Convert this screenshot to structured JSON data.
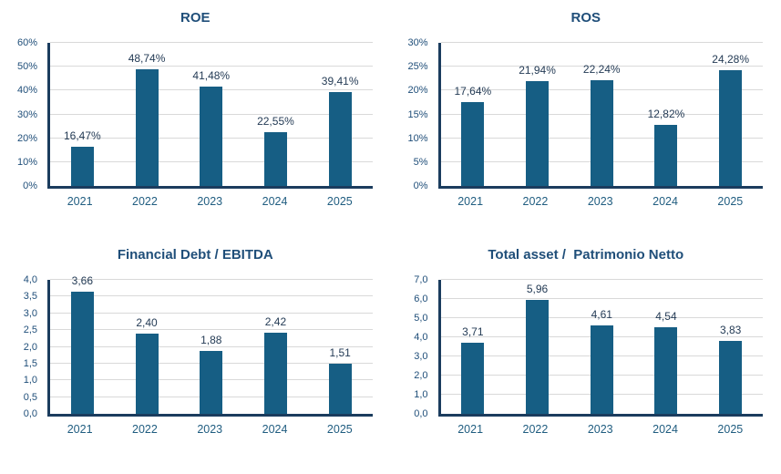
{
  "theme": {
    "bar_color": "#165E84",
    "title_color": "#1F4E79",
    "tick_color": "#1F4E79",
    "year_color": "#205D80",
    "label_color": "#243B55",
    "axis_color": "#1B3C5E",
    "gridline_color": "#D9D9D9",
    "background_color": "#FFFFFF"
  },
  "chart_data": [
    {
      "type": "bar",
      "title": "ROE",
      "categories": [
        "2021",
        "2022",
        "2023",
        "2024",
        "2025"
      ],
      "values": [
        16.47,
        48.74,
        41.48,
        22.55,
        39.41
      ],
      "value_labels": [
        "16,47%",
        "48,74%",
        "41,48%",
        "22,55%",
        "39,41%"
      ],
      "xlabel": "",
      "ylabel": "",
      "ylim": [
        0,
        60
      ],
      "ytick_step": 10,
      "ytick_labels": [
        "0%",
        "10%",
        "20%",
        "30%",
        "40%",
        "50%",
        "60%"
      ],
      "grid": true,
      "legend": false
    },
    {
      "type": "bar",
      "title": "ROS",
      "categories": [
        "2021",
        "2022",
        "2023",
        "2024",
        "2025"
      ],
      "values": [
        17.64,
        21.94,
        22.24,
        12.82,
        24.28
      ],
      "value_labels": [
        "17,64%",
        "21,94%",
        "22,24%",
        "12,82%",
        "24,28%"
      ],
      "xlabel": "",
      "ylabel": "",
      "ylim": [
        0,
        30
      ],
      "ytick_step": 5,
      "ytick_labels": [
        "0%",
        "5%",
        "10%",
        "15%",
        "20%",
        "25%",
        "30%"
      ],
      "grid": true,
      "legend": false
    },
    {
      "type": "bar",
      "title": "Financial Debt / EBITDA",
      "categories": [
        "2021",
        "2022",
        "2023",
        "2024",
        "2025"
      ],
      "values": [
        3.66,
        2.4,
        1.88,
        2.42,
        1.51
      ],
      "value_labels": [
        "3,66",
        "2,40",
        "1,88",
        "2,42",
        "1,51"
      ],
      "xlabel": "",
      "ylabel": "",
      "ylim": [
        0,
        4
      ],
      "ytick_step": 0.5,
      "ytick_labels": [
        "0,0",
        "0,5",
        "1,0",
        "1,5",
        "2,0",
        "2,5",
        "3,0",
        "3,5",
        "4,0"
      ],
      "grid": true,
      "legend": false
    },
    {
      "type": "bar",
      "title": "Total asset /  Patrimonio Netto",
      "categories": [
        "2021",
        "2022",
        "2023",
        "2024",
        "2025"
      ],
      "values": [
        3.71,
        5.96,
        4.61,
        4.54,
        3.83
      ],
      "value_labels": [
        "3,71",
        "5,96",
        "4,61",
        "4,54",
        "3,83"
      ],
      "xlabel": "",
      "ylabel": "",
      "ylim": [
        0,
        7
      ],
      "ytick_step": 1,
      "ytick_labels": [
        "0,0",
        "1,0",
        "2,0",
        "3,0",
        "4,0",
        "5,0",
        "6,0",
        "7,0"
      ],
      "grid": true,
      "legend": false
    }
  ]
}
